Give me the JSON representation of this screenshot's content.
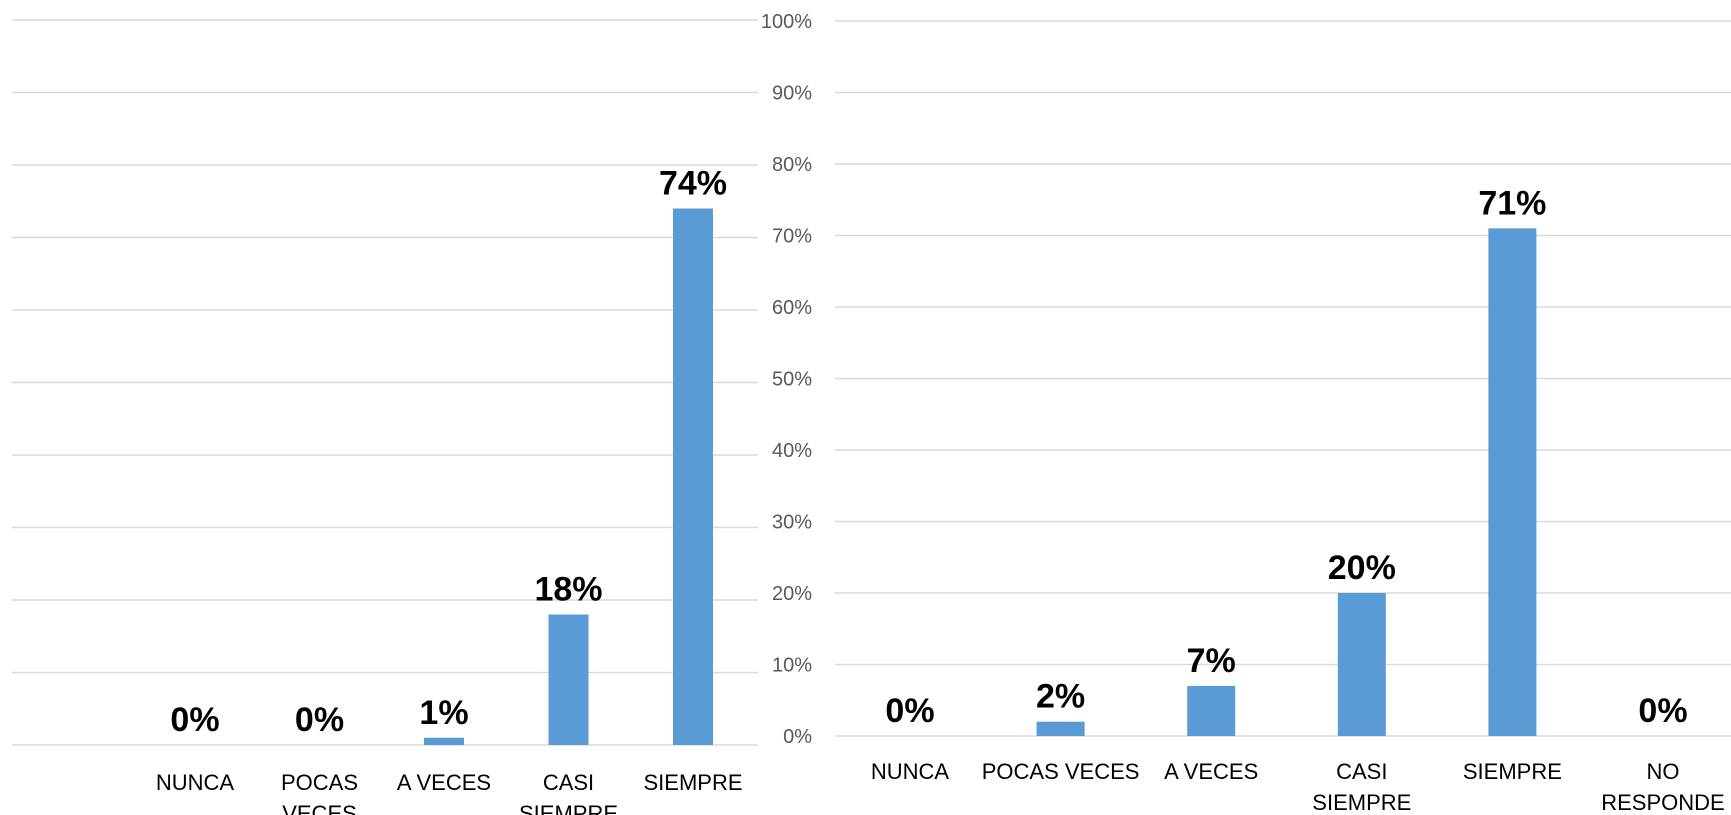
{
  "chart_data": [
    {
      "type": "bar",
      "categories": [
        [
          "NUNCA"
        ],
        [
          "POCAS",
          "VECES"
        ],
        [
          "A VECES"
        ],
        [
          "CASI",
          "SIEMPRE"
        ],
        [
          "SIEMPRE"
        ]
      ],
      "values": [
        0,
        0,
        1,
        18,
        74
      ],
      "data_labels": [
        "0%",
        "0%",
        "1%",
        "18%",
        "74%"
      ],
      "ylim": [
        0,
        100
      ],
      "grid": true,
      "color": "#5b9bd5"
    },
    {
      "type": "bar",
      "categories": [
        [
          "NUNCA"
        ],
        [
          "POCAS VECES"
        ],
        [
          "A VECES"
        ],
        [
          "CASI",
          "SIEMPRE"
        ],
        [
          "SIEMPRE"
        ],
        [
          "NO",
          "RESPONDE"
        ]
      ],
      "values": [
        0,
        2,
        7,
        20,
        71,
        0
      ],
      "data_labels": [
        "0%",
        "2%",
        "7%",
        "20%",
        "71%",
        "0%"
      ],
      "ylim": [
        0,
        100
      ],
      "y_ticks": [
        "0%",
        "10%",
        "20%",
        "30%",
        "40%",
        "50%",
        "60%",
        "70%",
        "80%",
        "90%",
        "100%"
      ],
      "grid": true,
      "color": "#5b9bd5"
    }
  ]
}
